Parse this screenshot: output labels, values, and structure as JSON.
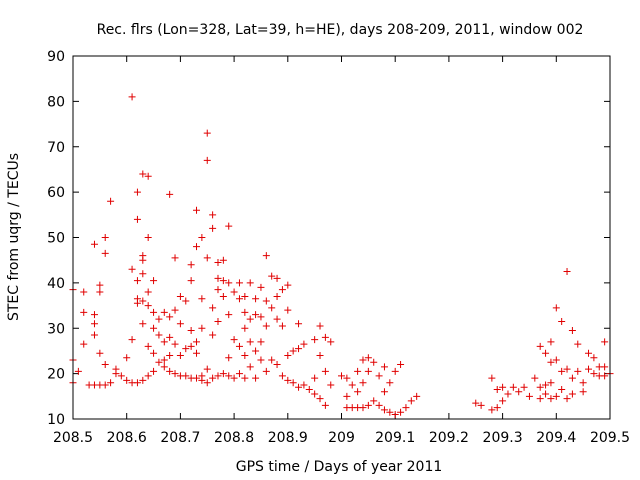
{
  "chart_data": {
    "type": "scatter",
    "title": "Rec. flrs (Lon=328, Lat=39, h=HE), days 208-209, 2011, window 002",
    "xlabel": "GPS time / Days of year 2011",
    "ylabel": "STEC from uqrg / TECUs",
    "xlim": [
      208.5,
      209.5
    ],
    "ylim": [
      10,
      90
    ],
    "xticks": [
      208.5,
      208.6,
      208.7,
      208.8,
      208.9,
      209.0,
      209.1,
      209.2,
      209.3,
      209.4,
      209.5
    ],
    "xtick_labels": [
      "208.5",
      "208.6",
      "208.7",
      "208.8",
      "208.9",
      "209",
      "209.1",
      "209.2",
      "209.3",
      "209.4",
      "209.5"
    ],
    "yticks": [
      10,
      20,
      30,
      40,
      50,
      60,
      70,
      80,
      90
    ],
    "ytick_labels": [
      "10",
      "20",
      "30",
      "40",
      "50",
      "60",
      "70",
      "80",
      "90"
    ],
    "grid": false,
    "marker": "+",
    "series": [
      {
        "name": "STEC",
        "color": "#e00000",
        "points": [
          [
            208.5,
            38.5
          ],
          [
            208.5,
            23.0
          ],
          [
            208.5,
            18.0
          ],
          [
            208.51,
            20.5
          ],
          [
            208.52,
            26.5
          ],
          [
            208.52,
            33.5
          ],
          [
            208.52,
            38.0
          ],
          [
            208.53,
            17.5
          ],
          [
            208.54,
            48.5
          ],
          [
            208.54,
            33.0
          ],
          [
            208.54,
            31.0
          ],
          [
            208.54,
            28.5
          ],
          [
            208.54,
            17.5
          ],
          [
            208.55,
            39.5
          ],
          [
            208.55,
            38.0
          ],
          [
            208.55,
            24.5
          ],
          [
            208.55,
            17.5
          ],
          [
            208.56,
            50.0
          ],
          [
            208.56,
            46.5
          ],
          [
            208.56,
            22.0
          ],
          [
            208.56,
            17.5
          ],
          [
            208.57,
            58.0
          ],
          [
            208.57,
            18.0
          ],
          [
            208.58,
            21.0
          ],
          [
            208.58,
            20.0
          ],
          [
            208.59,
            19.5
          ],
          [
            208.6,
            23.5
          ],
          [
            208.6,
            18.5
          ],
          [
            208.61,
            81.0
          ],
          [
            208.61,
            43.0
          ],
          [
            208.61,
            27.5
          ],
          [
            208.61,
            18.0
          ],
          [
            208.62,
            60.0
          ],
          [
            208.62,
            54.0
          ],
          [
            208.62,
            40.5
          ],
          [
            208.62,
            36.5
          ],
          [
            208.62,
            35.5
          ],
          [
            208.62,
            18.0
          ],
          [
            208.63,
            64.0
          ],
          [
            208.63,
            46.0
          ],
          [
            208.63,
            45.0
          ],
          [
            208.63,
            42.0
          ],
          [
            208.63,
            36.0
          ],
          [
            208.63,
            31.0
          ],
          [
            208.63,
            18.5
          ],
          [
            208.64,
            63.5
          ],
          [
            208.64,
            50.0
          ],
          [
            208.64,
            38.0
          ],
          [
            208.64,
            35.0
          ],
          [
            208.64,
            26.0
          ],
          [
            208.64,
            19.5
          ],
          [
            208.65,
            40.5
          ],
          [
            208.65,
            33.5
          ],
          [
            208.65,
            30.0
          ],
          [
            208.65,
            24.5
          ],
          [
            208.65,
            20.5
          ],
          [
            208.66,
            32.0
          ],
          [
            208.66,
            28.5
          ],
          [
            208.66,
            22.5
          ],
          [
            208.67,
            33.5
          ],
          [
            208.67,
            27.0
          ],
          [
            208.67,
            23.0
          ],
          [
            208.67,
            21.5
          ],
          [
            208.68,
            59.5
          ],
          [
            208.68,
            32.5
          ],
          [
            208.68,
            28.0
          ],
          [
            208.68,
            24.0
          ],
          [
            208.68,
            20.5
          ],
          [
            208.69,
            45.5
          ],
          [
            208.69,
            34.0
          ],
          [
            208.69,
            26.5
          ],
          [
            208.69,
            20.0
          ],
          [
            208.7,
            37.0
          ],
          [
            208.7,
            31.0
          ],
          [
            208.7,
            24.0
          ],
          [
            208.7,
            19.5
          ],
          [
            208.71,
            36.0
          ],
          [
            208.71,
            25.5
          ],
          [
            208.71,
            19.5
          ],
          [
            208.72,
            44.0
          ],
          [
            208.72,
            40.5
          ],
          [
            208.72,
            29.5
          ],
          [
            208.72,
            26.0
          ],
          [
            208.72,
            19.0
          ],
          [
            208.73,
            56.0
          ],
          [
            208.73,
            48.0
          ],
          [
            208.73,
            27.0
          ],
          [
            208.73,
            24.5
          ],
          [
            208.73,
            19.0
          ],
          [
            208.74,
            50.0
          ],
          [
            208.74,
            36.5
          ],
          [
            208.74,
            30.0
          ],
          [
            208.74,
            19.5
          ],
          [
            208.74,
            18.5
          ],
          [
            208.75,
            73.0
          ],
          [
            208.75,
            67.0
          ],
          [
            208.75,
            45.5
          ],
          [
            208.75,
            21.0
          ],
          [
            208.75,
            18.0
          ],
          [
            208.76,
            55.0
          ],
          [
            208.76,
            52.0
          ],
          [
            208.76,
            34.5
          ],
          [
            208.76,
            28.5
          ],
          [
            208.76,
            19.0
          ],
          [
            208.77,
            44.5
          ],
          [
            208.77,
            41.0
          ],
          [
            208.77,
            38.5
          ],
          [
            208.77,
            31.5
          ],
          [
            208.77,
            19.5
          ],
          [
            208.78,
            45.0
          ],
          [
            208.78,
            40.5
          ],
          [
            208.78,
            37.0
          ],
          [
            208.78,
            20.0
          ],
          [
            208.79,
            52.5
          ],
          [
            208.79,
            40.0
          ],
          [
            208.79,
            33.0
          ],
          [
            208.79,
            23.5
          ],
          [
            208.79,
            19.5
          ],
          [
            208.8,
            38.0
          ],
          [
            208.8,
            27.5
          ],
          [
            208.8,
            19.0
          ],
          [
            208.81,
            40.0
          ],
          [
            208.81,
            36.5
          ],
          [
            208.81,
            26.0
          ],
          [
            208.81,
            20.0
          ],
          [
            208.82,
            37.0
          ],
          [
            208.82,
            33.5
          ],
          [
            208.82,
            30.0
          ],
          [
            208.82,
            24.0
          ],
          [
            208.82,
            19.0
          ],
          [
            208.83,
            40.0
          ],
          [
            208.83,
            32.0
          ],
          [
            208.83,
            27.0
          ],
          [
            208.83,
            21.5
          ],
          [
            208.84,
            36.5
          ],
          [
            208.84,
            33.0
          ],
          [
            208.84,
            25.0
          ],
          [
            208.84,
            19.0
          ],
          [
            208.85,
            39.0
          ],
          [
            208.85,
            32.5
          ],
          [
            208.85,
            27.0
          ],
          [
            208.85,
            23.0
          ],
          [
            208.86,
            46.0
          ],
          [
            208.86,
            36.0
          ],
          [
            208.86,
            30.5
          ],
          [
            208.86,
            20.5
          ],
          [
            208.87,
            41.5
          ],
          [
            208.87,
            34.5
          ],
          [
            208.87,
            23.0
          ],
          [
            208.88,
            41.0
          ],
          [
            208.88,
            37.0
          ],
          [
            208.88,
            32.0
          ],
          [
            208.88,
            22.0
          ],
          [
            208.89,
            38.5
          ],
          [
            208.89,
            30.5
          ],
          [
            208.89,
            19.5
          ],
          [
            208.9,
            39.5
          ],
          [
            208.9,
            34.0
          ],
          [
            208.9,
            24.0
          ],
          [
            208.9,
            18.5
          ],
          [
            208.91,
            25.0
          ],
          [
            208.91,
            18.0
          ],
          [
            208.92,
            31.0
          ],
          [
            208.92,
            25.5
          ],
          [
            208.92,
            17.0
          ],
          [
            208.93,
            26.5
          ],
          [
            208.93,
            17.5
          ],
          [
            208.94,
            16.5
          ],
          [
            208.95,
            27.5
          ],
          [
            208.95,
            19.0
          ],
          [
            208.95,
            15.5
          ],
          [
            208.96,
            30.5
          ],
          [
            208.96,
            24.0
          ],
          [
            208.96,
            14.5
          ],
          [
            208.97,
            28.0
          ],
          [
            208.97,
            20.5
          ],
          [
            208.97,
            13.0
          ],
          [
            208.98,
            27.0
          ],
          [
            208.98,
            17.5
          ],
          [
            209.0,
            19.5
          ],
          [
            209.01,
            19.0
          ],
          [
            209.01,
            15.0
          ],
          [
            209.01,
            12.5
          ],
          [
            209.02,
            17.5
          ],
          [
            209.02,
            12.5
          ],
          [
            209.03,
            20.5
          ],
          [
            209.03,
            16.0
          ],
          [
            209.03,
            12.5
          ],
          [
            209.04,
            23.0
          ],
          [
            209.04,
            18.0
          ],
          [
            209.04,
            12.5
          ],
          [
            209.05,
            23.5
          ],
          [
            209.05,
            20.5
          ],
          [
            209.05,
            13.0
          ],
          [
            209.06,
            22.5
          ],
          [
            209.06,
            14.0
          ],
          [
            209.07,
            19.5
          ],
          [
            209.07,
            13.0
          ],
          [
            209.08,
            21.5
          ],
          [
            209.08,
            16.0
          ],
          [
            209.08,
            12.0
          ],
          [
            209.09,
            18.0
          ],
          [
            209.09,
            11.5
          ],
          [
            209.1,
            20.5
          ],
          [
            209.1,
            11.0
          ],
          [
            209.11,
            22.0
          ],
          [
            209.11,
            11.5
          ],
          [
            209.12,
            12.5
          ],
          [
            209.13,
            14.0
          ],
          [
            209.14,
            15.0
          ],
          [
            209.25,
            13.5
          ],
          [
            209.26,
            13.0
          ],
          [
            209.28,
            19.0
          ],
          [
            209.28,
            12.0
          ],
          [
            209.29,
            16.5
          ],
          [
            209.29,
            12.5
          ],
          [
            209.3,
            17.0
          ],
          [
            209.3,
            14.0
          ],
          [
            209.31,
            15.5
          ],
          [
            209.32,
            17.0
          ],
          [
            209.33,
            16.0
          ],
          [
            209.34,
            17.0
          ],
          [
            209.35,
            15.0
          ],
          [
            209.36,
            19.0
          ],
          [
            209.37,
            26.0
          ],
          [
            209.37,
            17.0
          ],
          [
            209.37,
            14.5
          ],
          [
            209.38,
            24.5
          ],
          [
            209.38,
            17.5
          ],
          [
            209.38,
            15.5
          ],
          [
            209.39,
            27.0
          ],
          [
            209.39,
            22.5
          ],
          [
            209.39,
            18.0
          ],
          [
            209.39,
            14.5
          ],
          [
            209.4,
            34.5
          ],
          [
            209.4,
            23.0
          ],
          [
            209.4,
            15.0
          ],
          [
            209.41,
            31.5
          ],
          [
            209.41,
            20.5
          ],
          [
            209.41,
            16.5
          ],
          [
            209.42,
            42.5
          ],
          [
            209.42,
            21.0
          ],
          [
            209.42,
            14.5
          ],
          [
            209.43,
            29.5
          ],
          [
            209.43,
            19.0
          ],
          [
            209.43,
            15.5
          ],
          [
            209.44,
            26.5
          ],
          [
            209.44,
            20.5
          ],
          [
            209.45,
            18.0
          ],
          [
            209.45,
            16.0
          ],
          [
            209.46,
            24.5
          ],
          [
            209.46,
            21.0
          ],
          [
            209.47,
            23.5
          ],
          [
            209.47,
            20.0
          ],
          [
            209.48,
            21.5
          ],
          [
            209.48,
            19.5
          ],
          [
            209.49,
            27.0
          ],
          [
            209.49,
            21.5
          ],
          [
            209.49,
            19.5
          ],
          [
            209.5,
            20.0
          ]
        ]
      }
    ]
  }
}
